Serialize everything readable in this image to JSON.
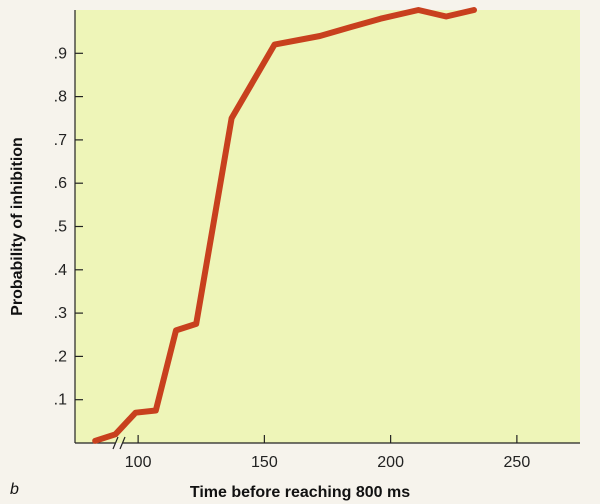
{
  "chart_data": {
    "type": "line",
    "title": "",
    "panel_label": "b",
    "xlabel": "Time before reaching 800 ms",
    "ylabel": "Probability of inhibition",
    "xlim": [
      75,
      275
    ],
    "ylim": [
      0,
      1.0
    ],
    "x_ticks": [
      100,
      150,
      200,
      250
    ],
    "x_tick_labels": [
      "100",
      "150",
      "200",
      "250"
    ],
    "y_ticks": [
      0.1,
      0.2,
      0.3,
      0.4,
      0.5,
      0.6,
      0.7,
      0.8,
      0.9
    ],
    "y_tick_labels": [
      ".1",
      ".2",
      ".3",
      ".4",
      ".5",
      ".6",
      ".7",
      ".8",
      ".9"
    ],
    "axis_break": true,
    "grid": false,
    "series": [
      {
        "x": [
          83,
          91,
          99,
          107,
          115,
          123,
          137,
          154,
          172,
          184,
          196,
          211,
          222,
          233
        ],
        "y": [
          0.005,
          0.02,
          0.07,
          0.075,
          0.26,
          0.275,
          0.75,
          0.92,
          0.94,
          0.96,
          0.98,
          1.0,
          0.985,
          1.0
        ],
        "color": "#c8401e"
      }
    ],
    "plot_bg": "#eef5b8"
  }
}
